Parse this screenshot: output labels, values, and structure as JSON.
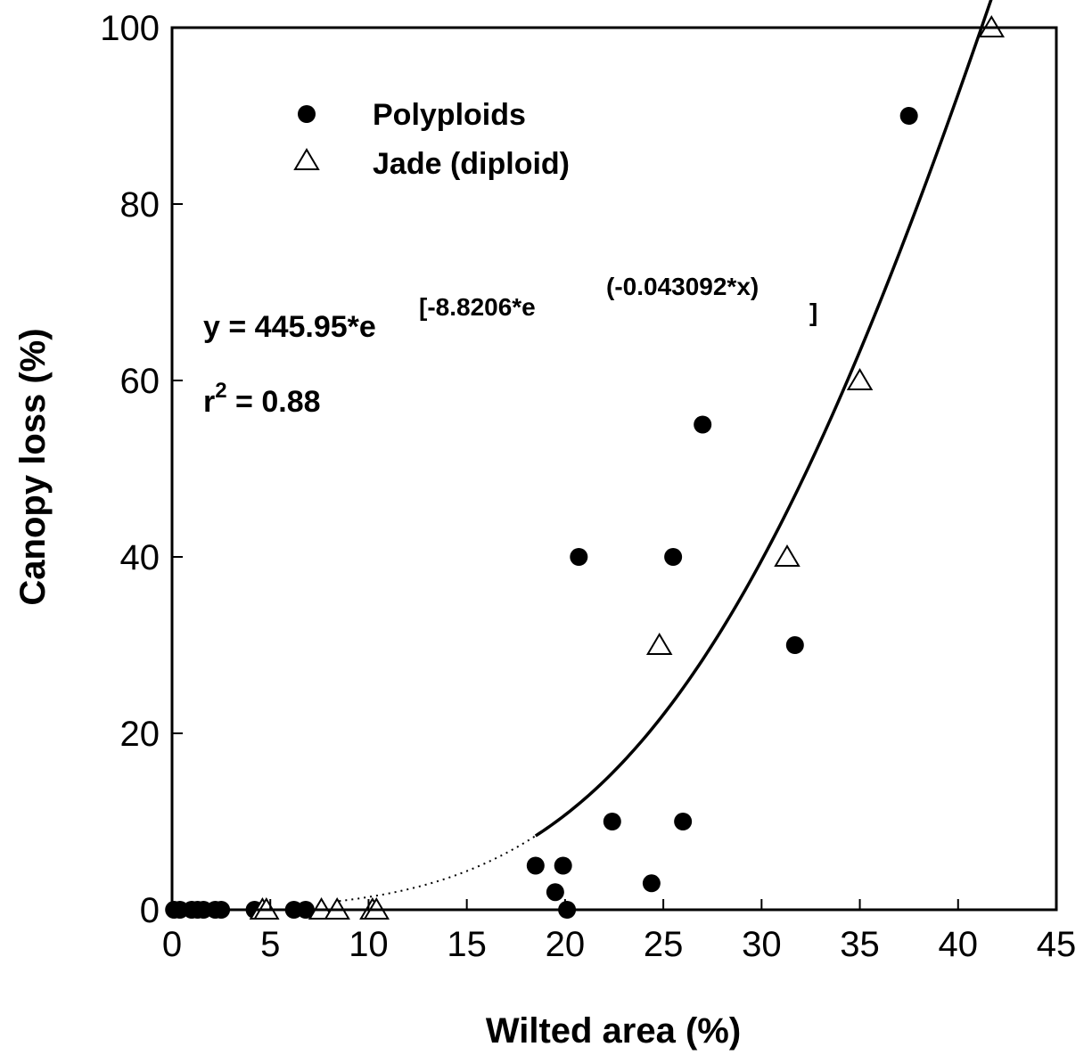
{
  "chart_data": {
    "type": "scatter",
    "xlabel": "Wilted area (%)",
    "ylabel": "Canopy loss (%)",
    "xlim": [
      0,
      45
    ],
    "ylim": [
      0,
      100
    ],
    "xticks": [
      "0",
      "5",
      "10",
      "15",
      "20",
      "25",
      "30",
      "35",
      "40",
      "45"
    ],
    "yticks": [
      "0",
      "20",
      "40",
      "60",
      "80",
      "100"
    ],
    "grid": false,
    "legend_position": "top-left",
    "series": [
      {
        "name": "Polyploids",
        "marker": "filled-circle",
        "color": "#000000",
        "points": [
          [
            0.1,
            0
          ],
          [
            0.4,
            0
          ],
          [
            1.0,
            0
          ],
          [
            1.3,
            0
          ],
          [
            1.6,
            0
          ],
          [
            2.2,
            0
          ],
          [
            2.5,
            0
          ],
          [
            4.2,
            0
          ],
          [
            6.2,
            0
          ],
          [
            6.8,
            0
          ],
          [
            18.5,
            5
          ],
          [
            19.5,
            2
          ],
          [
            19.9,
            5
          ],
          [
            20.1,
            0
          ],
          [
            20.7,
            40
          ],
          [
            22.4,
            10
          ],
          [
            24.4,
            3
          ],
          [
            25.5,
            40
          ],
          [
            26.0,
            10
          ],
          [
            27.0,
            55
          ],
          [
            31.7,
            30
          ],
          [
            37.5,
            90
          ]
        ]
      },
      {
        "name": "Jade (diploid)",
        "marker": "open-triangle",
        "color": "#000000",
        "points": [
          [
            4.6,
            0
          ],
          [
            4.8,
            0
          ],
          [
            7.6,
            0
          ],
          [
            8.4,
            0
          ],
          [
            10.2,
            0
          ],
          [
            10.4,
            0
          ],
          [
            24.8,
            30
          ],
          [
            31.3,
            40
          ],
          [
            35.0,
            60
          ],
          [
            41.7,
            100
          ]
        ]
      }
    ],
    "fit": {
      "a": 445.95,
      "b": 8.8206,
      "c": 0.043092,
      "dotted_range": [
        8.5,
        18.5
      ],
      "solid_range": [
        18.5,
        41.7
      ]
    },
    "annotations": {
      "eq_y": "y = 445.95*e",
      "eq_bracket_open": "[-8.8206*e",
      "eq_inner": "(-0.043092*x)",
      "eq_bracket_close": "]",
      "r2_prefix": "r",
      "r2_sup": "2",
      "r2_value": " = 0.88"
    }
  }
}
